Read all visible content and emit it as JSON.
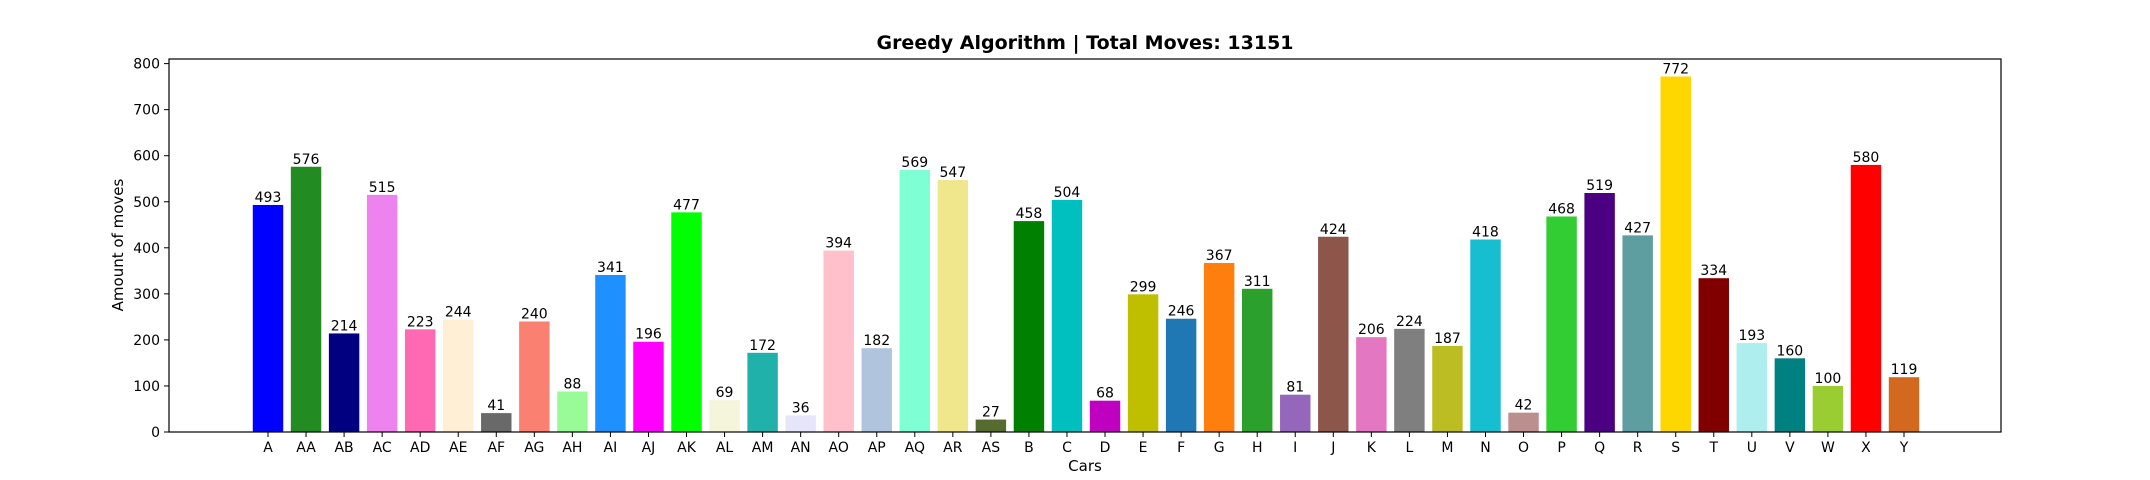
{
  "chart_data": {
    "type": "bar",
    "title": "Greedy Algorithm | Total Moves: 13151",
    "xlabel": "Cars",
    "ylabel": "Amount of moves",
    "ylim": [
      0,
      810
    ],
    "yticks": [
      0,
      100,
      200,
      300,
      400,
      500,
      600,
      700,
      800
    ],
    "grid": false,
    "categories": [
      "A",
      "AA",
      "AB",
      "AC",
      "AD",
      "AE",
      "AF",
      "AG",
      "AH",
      "AI",
      "AJ",
      "AK",
      "AL",
      "AM",
      "AN",
      "AO",
      "AP",
      "AQ",
      "AR",
      "AS",
      "B",
      "C",
      "D",
      "E",
      "F",
      "G",
      "H",
      "I",
      "J",
      "K",
      "L",
      "M",
      "N",
      "O",
      "P",
      "Q",
      "R",
      "S",
      "T",
      "U",
      "V",
      "W",
      "X",
      "Y"
    ],
    "values": [
      493,
      576,
      214,
      515,
      223,
      244,
      41,
      240,
      88,
      341,
      196,
      477,
      69,
      172,
      36,
      394,
      182,
      569,
      547,
      27,
      458,
      504,
      68,
      299,
      246,
      367,
      311,
      81,
      424,
      206,
      224,
      187,
      418,
      42,
      468,
      519,
      427,
      772,
      334,
      193,
      160,
      100,
      580,
      119
    ],
    "colors": [
      "#0000ff",
      "#228b22",
      "#000080",
      "#ee82ee",
      "#ff69b4",
      "#ffefd5",
      "#696969",
      "#fa8072",
      "#98fb98",
      "#1e90ff",
      "#ff00ff",
      "#00ff00",
      "#f5f5dc",
      "#20b2aa",
      "#e6e6fa",
      "#ffc0cb",
      "#b0c4de",
      "#7fffd4",
      "#f0e68c",
      "#556b2f",
      "#008000",
      "#00bfbf",
      "#c000c0",
      "#bfbf00",
      "#1f77b4",
      "#ff7f0e",
      "#2ca02c",
      "#9467bd",
      "#8c564b",
      "#e377c2",
      "#7f7f7f",
      "#bcbd22",
      "#17becf",
      "#bc8f8f",
      "#32cd32",
      "#4b0082",
      "#5f9ea0",
      "#ffd700",
      "#800000",
      "#afeeee",
      "#008080",
      "#9acd32",
      "#ff0000",
      "#d2691e"
    ]
  }
}
